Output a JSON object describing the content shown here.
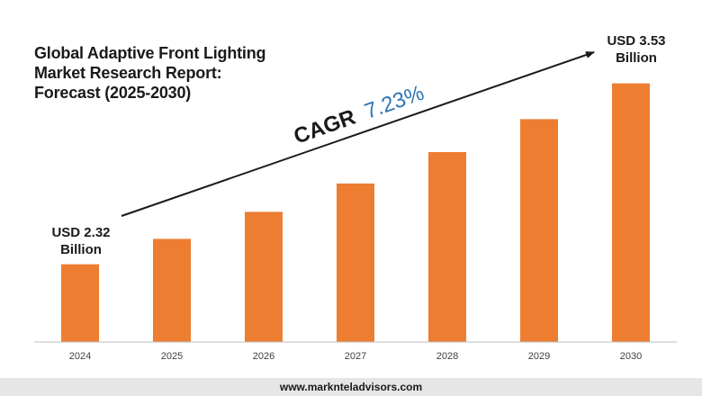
{
  "title_lines": [
    "Global Adaptive Front Lighting",
    "Market Research Report:",
    "Forecast (2025-2030)"
  ],
  "cagr": {
    "label": "CAGR",
    "value": "7.23%"
  },
  "annotations": {
    "start": [
      "USD 2.32",
      "Billion"
    ],
    "end": [
      "USD 3.53",
      "Billion"
    ]
  },
  "footer": {
    "url": "www.marknteladvisors.com"
  },
  "colors": {
    "bar": "#ed7d31",
    "cagr_value": "#2e75b6",
    "text": "#1a1a1a",
    "axis": "#bfbfbf",
    "footer_band": "#e7e6e6"
  },
  "chart_data": {
    "type": "bar",
    "categories": [
      "2024",
      "2025",
      "2026",
      "2027",
      "2028",
      "2029",
      "2030"
    ],
    "values": [
      2.32,
      2.49,
      2.67,
      2.86,
      3.07,
      3.29,
      3.53
    ],
    "title": "Global Adaptive Front Lighting Market Research Report: Forecast (2025-2030)",
    "unit": "USD Billion",
    "ylim": [
      1.8,
      3.75
    ],
    "grid": false
  }
}
